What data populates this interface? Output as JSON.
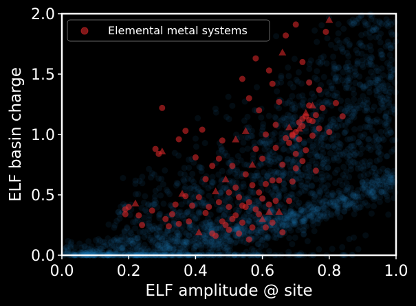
{
  "chart_data": {
    "type": "scatter",
    "xlabel": "ELF amplitude @ site",
    "ylabel": "ELF basin charge",
    "xlim": [
      0.0,
      1.0
    ],
    "ylim": [
      0.0,
      2.0
    ],
    "x_ticks": [
      "0.0",
      "0.2",
      "0.4",
      "0.6",
      "0.8",
      "1.0"
    ],
    "y_ticks": [
      "0.0",
      "0.5",
      "1.0",
      "1.5",
      "2.0"
    ],
    "legend_position": "top-left",
    "grid": false,
    "colors": {
      "background": "#000000",
      "background_points": "#1f77b4",
      "highlight_points": "#d62728",
      "axes": "#ffffff"
    },
    "series": [
      {
        "name": "Elemental metal systems",
        "color": "#d62728",
        "marker": "circle",
        "points": [
          [
            0.19,
            0.38
          ],
          [
            0.19,
            0.34
          ],
          [
            0.2,
            0.4
          ],
          [
            0.22,
            0.43
          ],
          [
            0.23,
            0.33
          ],
          [
            0.24,
            0.25
          ],
          [
            0.27,
            0.37
          ],
          [
            0.28,
            0.88
          ],
          [
            0.29,
            0.84
          ],
          [
            0.3,
            1.22
          ],
          [
            0.3,
            0.86
          ],
          [
            0.31,
            0.3
          ],
          [
            0.32,
            0.24
          ],
          [
            0.33,
            0.34
          ],
          [
            0.34,
            0.42
          ],
          [
            0.35,
            0.96
          ],
          [
            0.35,
            0.26
          ],
          [
            0.36,
            0.51
          ],
          [
            0.37,
            0.49
          ],
          [
            0.37,
            1.03
          ],
          [
            0.38,
            0.28
          ],
          [
            0.39,
            0.41
          ],
          [
            0.4,
            0.81
          ],
          [
            0.41,
            0.48
          ],
          [
            0.41,
            0.19
          ],
          [
            0.42,
            1.04
          ],
          [
            0.43,
            0.63
          ],
          [
            0.43,
            0.35
          ],
          [
            0.44,
            0.4
          ],
          [
            0.45,
            0.74
          ],
          [
            0.45,
            0.18
          ],
          [
            0.46,
            0.53
          ],
          [
            0.46,
            0.16
          ],
          [
            0.47,
            0.44
          ],
          [
            0.47,
            0.8
          ],
          [
            0.48,
            0.28
          ],
          [
            0.48,
            0.95
          ],
          [
            0.49,
            0.25
          ],
          [
            0.49,
            0.63
          ],
          [
            0.5,
            0.4
          ],
          [
            0.5,
            0.21
          ],
          [
            0.5,
            0.52
          ],
          [
            0.51,
            0.3
          ],
          [
            0.51,
            0.74
          ],
          [
            0.52,
            0.56
          ],
          [
            0.52,
            0.96
          ],
          [
            0.52,
            0.33
          ],
          [
            0.53,
            0.18
          ],
          [
            0.53,
            0.48
          ],
          [
            0.54,
            1.46
          ],
          [
            0.54,
            0.41
          ],
          [
            0.54,
            0.27
          ],
          [
            0.55,
            1.03
          ],
          [
            0.55,
            0.67
          ],
          [
            0.55,
            0.4
          ],
          [
            0.56,
            0.13
          ],
          [
            0.56,
            0.44
          ],
          [
            0.56,
            1.3
          ],
          [
            0.57,
            0.23
          ],
          [
            0.57,
            0.75
          ],
          [
            0.57,
            0.58
          ],
          [
            0.58,
            0.38
          ],
          [
            0.58,
            0.88
          ],
          [
            0.59,
            0.34
          ],
          [
            0.59,
            0.52
          ],
          [
            0.59,
            1.2
          ],
          [
            0.6,
            0.3
          ],
          [
            0.6,
            0.8
          ],
          [
            0.6,
            0.47
          ],
          [
            0.61,
            0.23
          ],
          [
            0.61,
            1.0
          ],
          [
            0.61,
            0.59
          ],
          [
            0.62,
            0.42
          ],
          [
            0.62,
            0.36
          ],
          [
            0.63,
            1.42
          ],
          [
            0.63,
            0.27
          ],
          [
            0.63,
            0.62
          ],
          [
            0.64,
            0.89
          ],
          [
            0.64,
            0.45
          ],
          [
            0.65,
            1.27
          ],
          [
            0.65,
            0.36
          ],
          [
            0.65,
            0.62
          ],
          [
            0.66,
            0.75
          ],
          [
            0.66,
            0.19
          ],
          [
            0.67,
            0.97
          ],
          [
            0.67,
            1.82
          ],
          [
            0.68,
            0.93
          ],
          [
            0.68,
            1.06
          ],
          [
            0.68,
            0.45
          ],
          [
            0.69,
            1.0
          ],
          [
            0.69,
            0.99
          ],
          [
            0.7,
            1.02
          ],
          [
            0.7,
            1.91
          ],
          [
            0.7,
            0.72
          ],
          [
            0.71,
            1.05
          ],
          [
            0.71,
            1.1
          ],
          [
            0.71,
            0.96
          ],
          [
            0.72,
            1.13
          ],
          [
            0.72,
            1.07
          ],
          [
            0.72,
            1.6
          ],
          [
            0.73,
            1.15
          ],
          [
            0.73,
            1.18
          ],
          [
            0.73,
            0.87
          ],
          [
            0.74,
            1.24
          ],
          [
            0.74,
            1.12
          ],
          [
            0.74,
            1.43
          ],
          [
            0.75,
            1.11
          ],
          [
            0.75,
            0.99
          ],
          [
            0.75,
            1.24
          ],
          [
            0.76,
            1.16
          ],
          [
            0.76,
            0.7
          ],
          [
            0.77,
            1.05
          ],
          [
            0.77,
            1.37
          ],
          [
            0.78,
            1.22
          ],
          [
            0.79,
            1.85
          ],
          [
            0.8,
            1.95
          ],
          [
            0.8,
            1.02
          ],
          [
            0.82,
            1.26
          ],
          [
            0.84,
            1.15
          ],
          [
            0.72,
            0.78
          ],
          [
            0.7,
            0.84
          ],
          [
            0.69,
            0.61
          ],
          [
            0.66,
            1.68
          ],
          [
            0.64,
            1.08
          ],
          [
            0.62,
            1.53
          ],
          [
            0.58,
            1.63
          ]
        ]
      }
    ]
  }
}
